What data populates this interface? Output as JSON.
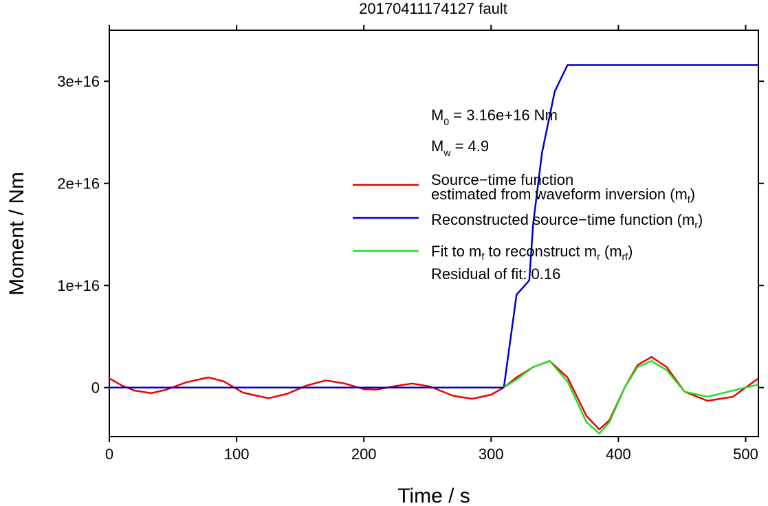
{
  "chart_data": {
    "type": "line",
    "title": "20170411174127 fault",
    "xlabel": "Time / s",
    "ylabel": "Moment / Nm",
    "xlim": [
      0,
      510
    ],
    "ylim": [
      -4800000000000000.0,
      3.5e+16
    ],
    "xticks": [
      0,
      100,
      200,
      300,
      400,
      500
    ],
    "xtick_labels": [
      "0",
      "100",
      "200",
      "300",
      "400",
      "500"
    ],
    "yticks": [
      0,
      1e+16,
      2e+16,
      3e+16
    ],
    "ytick_labels": [
      "0",
      "1e+16",
      "2e+16",
      "3e+16"
    ],
    "grid": false,
    "legend_position": "right",
    "annotations": {
      "m0_prefix": "M",
      "m0_sub": "0",
      "m0_value": " = 3.16e+16 Nm",
      "mw_prefix": "M",
      "mw_sub": "w",
      "mw_value": " = 4.9",
      "residual": "Residual of fit: 0.16"
    },
    "legend": [
      {
        "line1": "Source−time function",
        "line2": "estimated from waveform inversion (m",
        "sub": "f",
        "tail": ")",
        "color": "#ee0000"
      },
      {
        "line1": "Reconstructed source−time function (m",
        "sub": "r",
        "tail": ")",
        "color": "#0000cc"
      },
      {
        "line1a": "Fit to m",
        "sub1": "f",
        "line1b": " to reconstruct m",
        "sub2": "r",
        "line1c": " (m",
        "sub3": "rf",
        "tail": ")",
        "color": "#22dd22"
      }
    ],
    "series": [
      {
        "name": "Source−time function estimated from waveform inversion (mf)",
        "color": "#ee0000",
        "x": [
          0,
          10,
          20,
          33,
          45,
          60,
          78,
          90,
          105,
          125,
          140,
          155,
          170,
          185,
          200,
          210,
          225,
          238,
          252,
          270,
          285,
          300,
          310,
          320,
          333,
          346,
          360,
          375,
          385,
          393,
          405,
          415,
          426,
          438,
          452,
          470,
          490,
          500,
          510
        ],
        "y": [
          900000000000000.0,
          200000000000000.0,
          -300000000000000.0,
          -550000000000000.0,
          -200000000000000.0,
          500000000000000.0,
          1000000000000000.0,
          600000000000000.0,
          -500000000000000.0,
          -1050000000000000.0,
          -600000000000000.0,
          200000000000000.0,
          700000000000000.0,
          400000000000000.0,
          -150000000000000.0,
          -200000000000000.0,
          150000000000000.0,
          400000000000000.0,
          100000000000000.0,
          -800000000000000.0,
          -1100000000000000.0,
          -700000000000000.0,
          0.0,
          1000000000000000.0,
          2000000000000000.0,
          2600000000000000.0,
          1000000000000000.0,
          -2800000000000000.0,
          -4100000000000000.0,
          -3200000000000000.0,
          0.0,
          2200000000000000.0,
          3000000000000000.0,
          2000000000000000.0,
          -400000000000000.0,
          -1300000000000000.0,
          -900000000000000.0,
          0.0,
          900000000000000.0
        ]
      },
      {
        "name": "Reconstructed source−time function (mr)",
        "color": "#0000cc",
        "x": [
          0,
          310,
          320,
          330,
          333,
          340,
          350,
          360,
          510
        ],
        "y": [
          0,
          0,
          9100000000000000.0,
          1.05e+16,
          1.6e+16,
          2.3e+16,
          2.9e+16,
          3.16e+16,
          3.16e+16
        ]
      },
      {
        "name": "Fit to mf to reconstruct mr (mrf)",
        "color": "#22dd22",
        "x": [
          310,
          320,
          333,
          346,
          360,
          375,
          385,
          393,
          405,
          415,
          426,
          438,
          452,
          470,
          490,
          510
        ],
        "y": [
          0.0,
          800000000000000.0,
          2000000000000000.0,
          2600000000000000.0,
          600000000000000.0,
          -3400000000000000.0,
          -4500000000000000.0,
          -3400000000000000.0,
          0.0,
          2000000000000000.0,
          2600000000000000.0,
          1700000000000000.0,
          -400000000000000.0,
          -900000000000000.0,
          -300000000000000.0,
          300000000000000.0
        ]
      }
    ]
  }
}
